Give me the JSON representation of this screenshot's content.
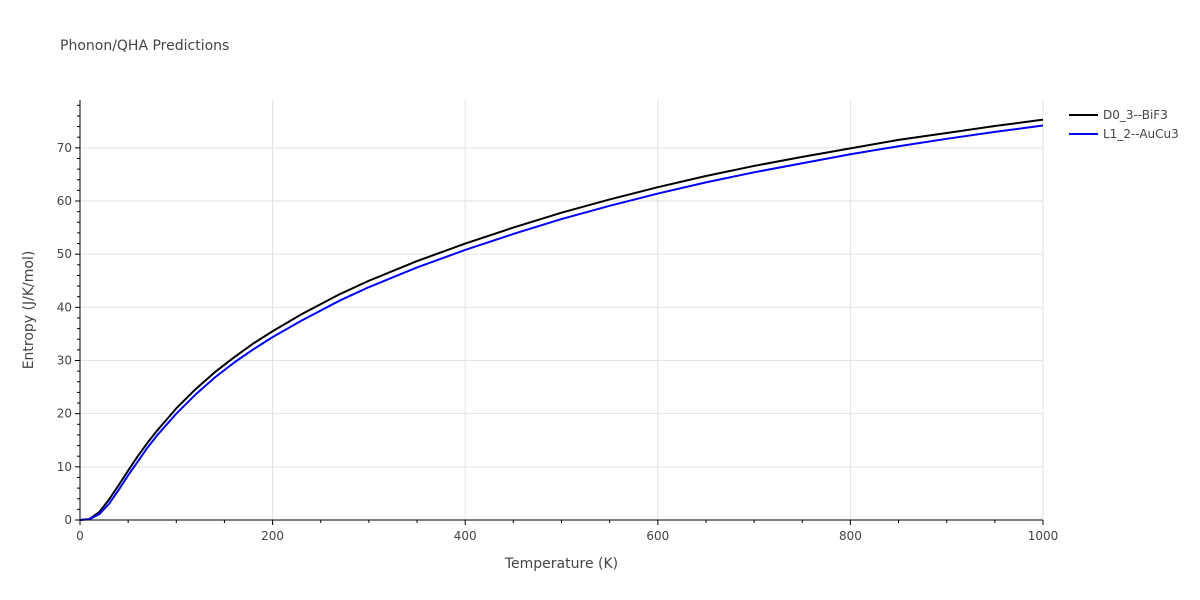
{
  "chart_data": {
    "type": "line",
    "title": "Phonon/QHA Predictions",
    "xlabel": "Temperature (K)",
    "ylabel": "Entropy (J/K/mol)",
    "xlim": [
      0,
      1000
    ],
    "ylim": [
      0,
      79
    ],
    "x_ticks": [
      0,
      200,
      400,
      600,
      800,
      1000
    ],
    "y_ticks": [
      0,
      10,
      20,
      30,
      40,
      50,
      60,
      70
    ],
    "x_tick_labels": [
      "0",
      "200",
      "400",
      "600",
      "800",
      "1000"
    ],
    "y_tick_labels": [
      "0",
      "10",
      "20",
      "30",
      "40",
      "50",
      "60",
      "70"
    ],
    "grid": true,
    "legend_position": "top-right",
    "series": [
      {
        "name": "D0_3--BiF3",
        "color": "#000000",
        "x": [
          0,
          10,
          20,
          30,
          40,
          50,
          60,
          70,
          80,
          100,
          120,
          140,
          160,
          180,
          200,
          230,
          270,
          300,
          350,
          400,
          450,
          500,
          550,
          600,
          650,
          700,
          750,
          800,
          850,
          900,
          950,
          1000
        ],
        "y": [
          0,
          0.2,
          1.5,
          3.8,
          6.5,
          9.3,
          12.0,
          14.5,
          16.8,
          21.0,
          24.6,
          27.8,
          30.6,
          33.2,
          35.5,
          38.7,
          42.5,
          45.0,
          48.7,
          52.0,
          55.0,
          57.8,
          60.3,
          62.6,
          64.7,
          66.6,
          68.3,
          69.9,
          71.5,
          72.8,
          74.1,
          75.3
        ]
      },
      {
        "name": "L1_2--AuCu3",
        "color": "#0000ff",
        "x": [
          0,
          10,
          20,
          30,
          40,
          50,
          60,
          70,
          80,
          100,
          120,
          140,
          160,
          180,
          200,
          230,
          270,
          300,
          350,
          400,
          450,
          500,
          550,
          600,
          650,
          700,
          750,
          800,
          850,
          900,
          950,
          1000
        ],
        "y": [
          0,
          0.15,
          1.1,
          3.0,
          5.6,
          8.4,
          11.0,
          13.6,
          15.9,
          20.0,
          23.6,
          26.8,
          29.6,
          32.1,
          34.4,
          37.5,
          41.3,
          43.8,
          47.5,
          50.8,
          53.8,
          56.6,
          59.1,
          61.4,
          63.5,
          65.4,
          67.1,
          68.8,
          70.3,
          71.7,
          73.0,
          74.2
        ]
      }
    ]
  }
}
